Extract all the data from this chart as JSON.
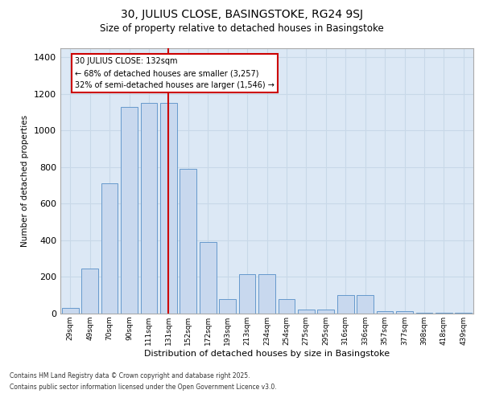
{
  "title_line1": "30, JULIUS CLOSE, BASINGSTOKE, RG24 9SJ",
  "title_line2": "Size of property relative to detached houses in Basingstoke",
  "xlabel": "Distribution of detached houses by size in Basingstoke",
  "ylabel": "Number of detached properties",
  "categories": [
    "29sqm",
    "49sqm",
    "70sqm",
    "90sqm",
    "111sqm",
    "131sqm",
    "152sqm",
    "172sqm",
    "193sqm",
    "213sqm",
    "234sqm",
    "254sqm",
    "275sqm",
    "295sqm",
    "316sqm",
    "336sqm",
    "357sqm",
    "377sqm",
    "398sqm",
    "418sqm",
    "439sqm"
  ],
  "bar_heights": [
    30,
    245,
    710,
    1130,
    1150,
    1150,
    790,
    390,
    80,
    215,
    215,
    80,
    20,
    20,
    100,
    100,
    15,
    15,
    5,
    5,
    5
  ],
  "bar_color": "#c8d8ee",
  "bar_edge_color": "#6699cc",
  "vline_idx": 5,
  "vline_color": "#cc0000",
  "annotation_text": "30 JULIUS CLOSE: 132sqm\n← 68% of detached houses are smaller (3,257)\n32% of semi-detached houses are larger (1,546) →",
  "annotation_box_color": "#cc0000",
  "footer_line1": "Contains HM Land Registry data © Crown copyright and database right 2025.",
  "footer_line2": "Contains public sector information licensed under the Open Government Licence v3.0.",
  "ylim_max": 1450,
  "yticks": [
    0,
    200,
    400,
    600,
    800,
    1000,
    1200,
    1400
  ],
  "grid_color": "#c8d8e8",
  "bg_color": "#dce8f5"
}
